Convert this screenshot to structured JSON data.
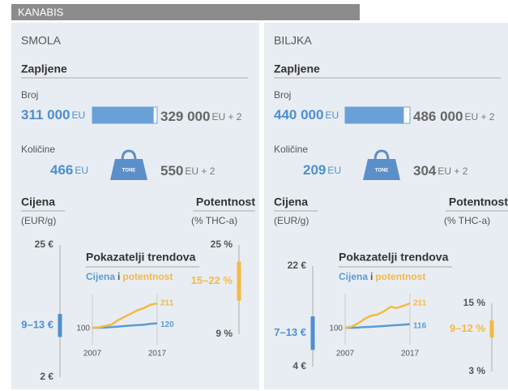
{
  "header": "KANABIS",
  "panels": [
    {
      "title": "SMOLA",
      "seizures_heading": "Zapljene",
      "count_label": "Broj",
      "count_now": {
        "value": 311000,
        "label": "311 000"
      },
      "count_now_unit": "EU",
      "count_prev": {
        "value": 329000,
        "label": "329 000"
      },
      "count_prev_unit": "EU + 2",
      "quantity_label": "Količine",
      "qty_now": {
        "value": 466,
        "label": "466"
      },
      "qty_now_unit": "EU",
      "weight_label": "TONE",
      "qty_prev": {
        "value": 550,
        "label": "550"
      },
      "qty_prev_unit": "EU + 2",
      "price_heading": "Cijena",
      "price_unit": "(EUR/g)",
      "potency_heading": "Potentnost",
      "potency_unit": "(% THC-a)",
      "price_scale": {
        "max": {
          "value": 25,
          "label": "25 €"
        },
        "min": {
          "value": 2,
          "label": "2 €"
        },
        "range": {
          "value": [
            9,
            13
          ],
          "label": "9–13 €"
        }
      },
      "potency_scale": {
        "max": {
          "value": 25,
          "label": "25 %"
        },
        "min": {
          "value": 9,
          "label": "9 %"
        },
        "range": {
          "value": [
            15,
            22
          ],
          "label": "15–22 %"
        }
      },
      "trend": {
        "title": "Pokazatelji trendova",
        "connector": "i",
        "xlim": [
          2007,
          2017
        ],
        "series": [
          {
            "name": "Cijena",
            "color": "#5b9bd5",
            "values": [
              100,
              100,
              101,
              103,
              105,
              108,
              110,
              112,
              114,
              118,
              120
            ]
          },
          {
            "name": "potentnost",
            "color": "#f5b942",
            "values": [
              100,
              102,
              108,
              115,
              135,
              150,
              165,
              180,
              190,
              205,
              211
            ]
          }
        ]
      }
    },
    {
      "title": "BILJKA",
      "seizures_heading": "Zapljene",
      "count_label": "Broj",
      "count_now": {
        "value": 440000,
        "label": "440 000"
      },
      "count_now_unit": "EU",
      "count_prev": {
        "value": 486000,
        "label": "486 000"
      },
      "count_prev_unit": "EU + 2",
      "quantity_label": "Količine",
      "qty_now": {
        "value": 209,
        "label": "209"
      },
      "qty_now_unit": "EU",
      "weight_label": "TONE",
      "qty_prev": {
        "value": 304,
        "label": "304"
      },
      "qty_prev_unit": "EU + 2",
      "price_heading": "Cijena",
      "price_unit": "(EUR/g)",
      "potency_heading": "Potentnost",
      "potency_unit": "(% THC-a)",
      "price_scale": {
        "max": {
          "value": 22,
          "label": "22 €"
        },
        "min": {
          "value": 4,
          "label": "4 €"
        },
        "range": {
          "value": [
            7,
            13
          ],
          "label": "7–13 €"
        }
      },
      "potency_scale": {
        "max": {
          "value": 15,
          "label": "15 %"
        },
        "min": {
          "value": 3,
          "label": "3 %"
        },
        "range": {
          "value": [
            9,
            12
          ],
          "label": "9–12 %"
        }
      },
      "trend": {
        "title": "Pokazatelji trendova",
        "connector": "i",
        "xlim": [
          2007,
          2017
        ],
        "series": [
          {
            "name": "Cijena",
            "color": "#5b9bd5",
            "values": [
              100,
              100,
              101,
              103,
              104,
              106,
              108,
              110,
              112,
              114,
              116
            ]
          },
          {
            "name": "potentnost",
            "color": "#f5b942",
            "values": [
              100,
              105,
              120,
              140,
              155,
              160,
              175,
              195,
              190,
              200,
              211
            ]
          }
        ]
      }
    }
  ]
}
